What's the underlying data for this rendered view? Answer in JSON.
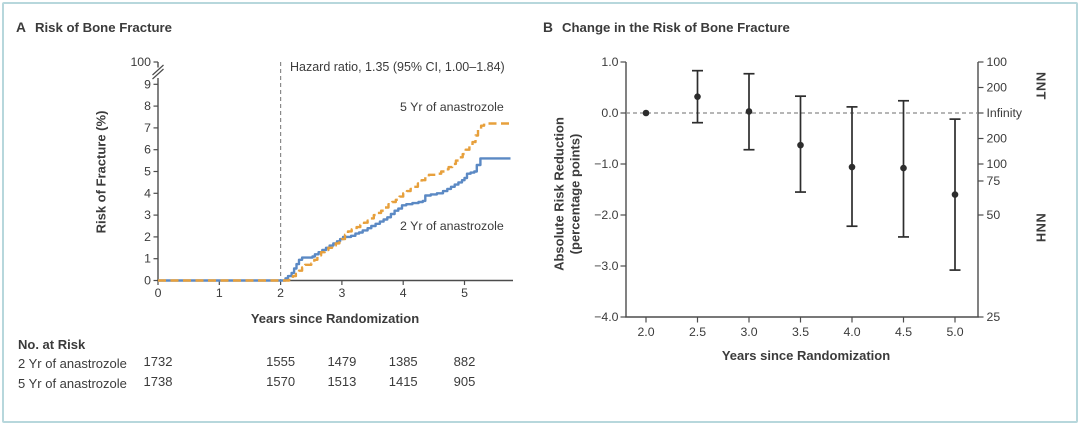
{
  "colors": {
    "blue": "#5b89c4",
    "orange": "#e7a03c",
    "axis": "#4c4c4c",
    "text": "#3b3b3b",
    "marker": "#2d2d2d",
    "dash": "#8a8a8a",
    "border": "#b7d7dc"
  },
  "panel_a": {
    "letter": "A",
    "title": "Risk of Bone Fracture",
    "annotation": "Hazard ratio, 1.35 (95% CI, 1.00–1.84)",
    "label_5yr": "5 Yr of anastrozole",
    "label_2yr": "2 Yr of anastrozole",
    "ylabel": "Risk of Fracture (%)",
    "xlabel": "Years since Randomization"
  },
  "risk_table": {
    "title": "No. at Risk",
    "years": [
      0,
      2,
      3,
      4,
      5
    ],
    "rows": [
      {
        "label": "2 Yr of anastrozole",
        "values": [
          "1732",
          "1555",
          "1479",
          "1385",
          "882"
        ]
      },
      {
        "label": "5 Yr of anastrozole",
        "values": [
          "1738",
          "1570",
          "1513",
          "1415",
          "905"
        ]
      }
    ]
  },
  "panel_b": {
    "letter": "B",
    "title": "Change in the Risk of Bone Fracture",
    "ylabel_line1": "Absolute Risk Reduction",
    "ylabel_line2": "(percentage points)",
    "xlabel": "Years since Randomization",
    "right_axis_top": "NNT",
    "right_axis_bottom": "NNH"
  },
  "chart_data": [
    {
      "type": "line",
      "title": "Risk of Bone Fracture",
      "xlabel": "Years since Randomization",
      "ylabel": "Risk of Fracture (%)",
      "x_ticks": [
        0,
        1,
        2,
        3,
        4,
        5
      ],
      "y_ticks": [
        0,
        1,
        2,
        3,
        4,
        5,
        6,
        7,
        8,
        9
      ],
      "y_break_top_label": "100",
      "xlim": [
        0,
        5.8
      ],
      "ylim": [
        0,
        9.5
      ],
      "vline_x": 2,
      "annotation": "Hazard ratio, 1.35 (95% CI, 1.00–1.84)",
      "legend_position": "inline-labels",
      "grid": false,
      "series": [
        {
          "name": "2 Yr of anastrozole",
          "style": "solid",
          "color_key": "blue",
          "points": [
            [
              0,
              0
            ],
            [
              2.05,
              0
            ],
            [
              2.08,
              0.1
            ],
            [
              2.12,
              0.2
            ],
            [
              2.18,
              0.35
            ],
            [
              2.22,
              0.55
            ],
            [
              2.26,
              0.75
            ],
            [
              2.3,
              0.95
            ],
            [
              2.35,
              1.05
            ],
            [
              2.52,
              1.1
            ],
            [
              2.56,
              1.2
            ],
            [
              2.62,
              1.3
            ],
            [
              2.68,
              1.4
            ],
            [
              2.74,
              1.5
            ],
            [
              2.8,
              1.6
            ],
            [
              2.86,
              1.7
            ],
            [
              2.92,
              1.8
            ],
            [
              2.97,
              1.9
            ],
            [
              3.02,
              2.0
            ],
            [
              3.15,
              2.05
            ],
            [
              3.22,
              2.15
            ],
            [
              3.28,
              2.2
            ],
            [
              3.34,
              2.3
            ],
            [
              3.42,
              2.4
            ],
            [
              3.48,
              2.5
            ],
            [
              3.55,
              2.6
            ],
            [
              3.62,
              2.7
            ],
            [
              3.68,
              2.8
            ],
            [
              3.74,
              2.9
            ],
            [
              3.8,
              3.05
            ],
            [
              3.86,
              3.2
            ],
            [
              3.92,
              3.3
            ],
            [
              3.98,
              3.45
            ],
            [
              4.05,
              3.5
            ],
            [
              4.15,
              3.55
            ],
            [
              4.25,
              3.6
            ],
            [
              4.32,
              3.65
            ],
            [
              4.36,
              3.9
            ],
            [
              4.45,
              3.95
            ],
            [
              4.55,
              4.0
            ],
            [
              4.65,
              4.1
            ],
            [
              4.72,
              4.2
            ],
            [
              4.78,
              4.3
            ],
            [
              4.84,
              4.4
            ],
            [
              4.9,
              4.5
            ],
            [
              4.96,
              4.6
            ],
            [
              5.0,
              4.7
            ],
            [
              5.04,
              4.9
            ],
            [
              5.1,
              4.95
            ],
            [
              5.16,
              5.0
            ],
            [
              5.2,
              5.3
            ],
            [
              5.26,
              5.6
            ],
            [
              5.75,
              5.6
            ]
          ]
        },
        {
          "name": "5 Yr of anastrozole",
          "style": "dashed",
          "color_key": "orange",
          "points": [
            [
              0,
              0
            ],
            [
              2.1,
              0
            ],
            [
              2.14,
              0.1
            ],
            [
              2.2,
              0.2
            ],
            [
              2.25,
              0.3
            ],
            [
              2.3,
              0.45
            ],
            [
              2.35,
              0.6
            ],
            [
              2.4,
              0.72
            ],
            [
              2.5,
              0.78
            ],
            [
              2.55,
              0.95
            ],
            [
              2.6,
              1.15
            ],
            [
              2.66,
              1.3
            ],
            [
              2.72,
              1.4
            ],
            [
              2.78,
              1.5
            ],
            [
              2.84,
              1.6
            ],
            [
              2.9,
              1.7
            ],
            [
              2.96,
              1.8
            ],
            [
              3.0,
              1.9
            ],
            [
              3.05,
              2.1
            ],
            [
              3.1,
              2.25
            ],
            [
              3.16,
              2.35
            ],
            [
              3.24,
              2.45
            ],
            [
              3.3,
              2.55
            ],
            [
              3.36,
              2.65
            ],
            [
              3.42,
              2.75
            ],
            [
              3.47,
              2.85
            ],
            [
              3.52,
              3.0
            ],
            [
              3.58,
              3.1
            ],
            [
              3.64,
              3.2
            ],
            [
              3.7,
              3.35
            ],
            [
              3.76,
              3.5
            ],
            [
              3.82,
              3.6
            ],
            [
              3.88,
              3.7
            ],
            [
              3.94,
              3.85
            ],
            [
              4.0,
              4.0
            ],
            [
              4.06,
              4.1
            ],
            [
              4.12,
              4.2
            ],
            [
              4.18,
              4.3
            ],
            [
              4.24,
              4.45
            ],
            [
              4.3,
              4.6
            ],
            [
              4.36,
              4.75
            ],
            [
              4.42,
              4.85
            ],
            [
              4.55,
              4.9
            ],
            [
              4.62,
              5.0
            ],
            [
              4.68,
              5.1
            ],
            [
              4.74,
              5.2
            ],
            [
              4.8,
              5.35
            ],
            [
              4.86,
              5.5
            ],
            [
              4.92,
              5.65
            ],
            [
              4.97,
              5.8
            ],
            [
              5.02,
              6.0
            ],
            [
              5.08,
              6.15
            ],
            [
              5.13,
              6.35
            ],
            [
              5.18,
              6.65
            ],
            [
              5.22,
              6.95
            ],
            [
              5.27,
              7.1
            ],
            [
              5.32,
              7.2
            ],
            [
              5.75,
              7.2
            ]
          ]
        }
      ],
      "at_risk": {
        "years": [
          0,
          2,
          3,
          4,
          5
        ],
        "rows": [
          {
            "label": "2 Yr of anastrozole",
            "values": [
              1732,
              1555,
              1479,
              1385,
              882
            ]
          },
          {
            "label": "5 Yr of anastrozole",
            "values": [
              1738,
              1570,
              1513,
              1415,
              905
            ]
          }
        ]
      }
    },
    {
      "type": "scatter",
      "title": "Change in the Risk of Bone Fracture",
      "xlabel": "Years since Randomization",
      "ylabel": "Absolute Risk Reduction (percentage points)",
      "xlim": [
        1.8,
        5.2
      ],
      "ylim": [
        -4.0,
        1.0
      ],
      "zero_line_dashed": true,
      "grid": false,
      "x_ticks": [
        "2.0",
        "2.5",
        "3.0",
        "3.5",
        "4.0",
        "4.5",
        "5.0"
      ],
      "y_ticks": [
        {
          "v": 1.0,
          "label": "1.0"
        },
        {
          "v": 0.0,
          "label": "0.0"
        },
        {
          "v": -1.0,
          "label": "−1.0"
        },
        {
          "v": -2.0,
          "label": "−2.0"
        },
        {
          "v": -3.0,
          "label": "−3.0"
        },
        {
          "v": -4.0,
          "label": "−4.0"
        }
      ],
      "right_ticks": [
        {
          "v": 1.0,
          "label": "100"
        },
        {
          "v": 0.5,
          "label": "200"
        },
        {
          "v": 0.0,
          "label": "Infinity"
        },
        {
          "v": -0.5,
          "label": "200"
        },
        {
          "v": -1.0,
          "label": "100"
        },
        {
          "v": -1.333,
          "label": "75"
        },
        {
          "v": -2.0,
          "label": "50"
        },
        {
          "v": -4.0,
          "label": "25"
        }
      ],
      "right_axis_label_top": "NNT",
      "right_axis_label_bottom": "NNH",
      "points": [
        {
          "x": 2.0,
          "y": 0.0,
          "lo": null,
          "hi": null
        },
        {
          "x": 2.5,
          "y": 0.32,
          "lo": -0.19,
          "hi": 0.83
        },
        {
          "x": 3.0,
          "y": 0.03,
          "lo": -0.72,
          "hi": 0.77
        },
        {
          "x": 3.5,
          "y": -0.63,
          "lo": -1.55,
          "hi": 0.33
        },
        {
          "x": 4.0,
          "y": -1.06,
          "lo": -2.22,
          "hi": 0.12
        },
        {
          "x": 4.5,
          "y": -1.08,
          "lo": -2.43,
          "hi": 0.24
        },
        {
          "x": 5.0,
          "y": -1.6,
          "lo": -3.08,
          "hi": -0.12
        }
      ]
    }
  ]
}
